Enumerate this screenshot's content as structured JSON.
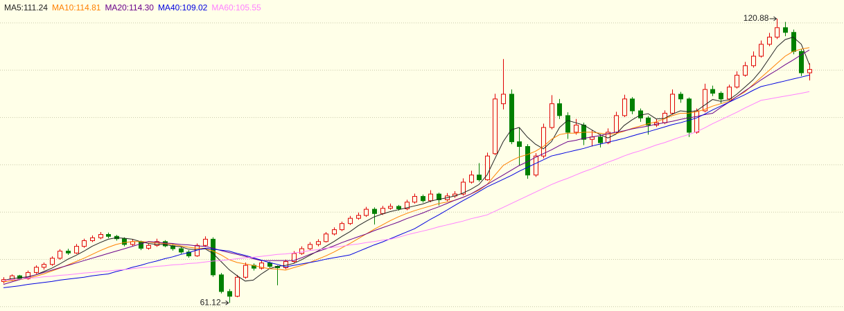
{
  "chart_data": {
    "type": "candlestick",
    "up_color": "#e00000",
    "down_color": "#008000",
    "background": "#ffffe8",
    "grid": true,
    "ylim": [
      59.4,
      121.9
    ],
    "max_label": 120.88,
    "min_label": 61.12,
    "ohlc": [
      [
        65.6,
        66.5,
        65.2,
        66.0
      ],
      [
        66.0,
        67.1,
        65.7,
        66.8
      ],
      [
        66.8,
        67.0,
        65.9,
        66.2
      ],
      [
        66.2,
        67.9,
        66.0,
        67.5
      ],
      [
        67.5,
        69.0,
        67.2,
        68.6
      ],
      [
        68.6,
        69.6,
        68.1,
        69.2
      ],
      [
        69.2,
        70.9,
        68.9,
        70.5
      ],
      [
        70.5,
        72.4,
        70.2,
        72.0
      ],
      [
        72.0,
        72.5,
        71.2,
        71.6
      ],
      [
        71.6,
        73.5,
        71.4,
        73.0
      ],
      [
        73.0,
        74.6,
        72.7,
        74.2
      ],
      [
        74.2,
        75.3,
        73.9,
        74.8
      ],
      [
        74.8,
        76.0,
        74.5,
        75.5
      ],
      [
        75.5,
        75.9,
        74.7,
        75.1
      ],
      [
        75.1,
        75.4,
        74.2,
        74.6
      ],
      [
        74.6,
        74.9,
        73.0,
        73.4
      ],
      [
        73.4,
        74.5,
        73.1,
        74.0
      ],
      [
        74.0,
        74.2,
        72.2,
        72.6
      ],
      [
        72.6,
        73.6,
        72.3,
        73.2
      ],
      [
        73.2,
        74.6,
        72.9,
        74.0
      ],
      [
        74.0,
        74.3,
        72.8,
        73.1
      ],
      [
        73.1,
        73.5,
        72.1,
        72.5
      ],
      [
        72.5,
        72.9,
        71.4,
        71.8
      ],
      [
        71.8,
        72.2,
        70.6,
        71.0
      ],
      [
        71.0,
        73.6,
        70.8,
        73.2
      ],
      [
        73.2,
        75.1,
        72.9,
        74.5
      ],
      [
        74.5,
        74.9,
        66.6,
        67.0
      ],
      [
        67.0,
        67.4,
        63.1,
        63.5
      ],
      [
        63.5,
        64.0,
        61.12,
        62.5
      ],
      [
        62.5,
        67.0,
        62.3,
        66.5
      ],
      [
        66.5,
        69.6,
        66.2,
        69.0
      ],
      [
        69.0,
        69.4,
        67.9,
        68.4
      ],
      [
        68.4,
        70.0,
        68.1,
        69.5
      ],
      [
        69.5,
        69.8,
        68.4,
        68.8
      ],
      [
        68.8,
        69.0,
        64.8,
        68.5
      ],
      [
        68.5,
        70.2,
        68.2,
        69.8
      ],
      [
        69.8,
        72.0,
        69.5,
        71.5
      ],
      [
        71.5,
        73.0,
        71.2,
        72.5
      ],
      [
        72.5,
        73.9,
        72.2,
        73.4
      ],
      [
        73.4,
        74.5,
        73.0,
        74.0
      ],
      [
        74.0,
        76.0,
        73.8,
        75.6
      ],
      [
        75.6,
        77.0,
        75.3,
        76.5
      ],
      [
        76.5,
        78.2,
        76.2,
        77.8
      ],
      [
        77.8,
        79.4,
        77.5,
        78.9
      ],
      [
        78.9,
        80.1,
        78.6,
        79.5
      ],
      [
        79.5,
        81.3,
        79.2,
        80.8
      ],
      [
        80.8,
        81.2,
        77.6,
        79.9
      ],
      [
        79.9,
        81.5,
        79.6,
        81.0
      ],
      [
        81.0,
        82.0,
        80.7,
        81.4
      ],
      [
        81.4,
        81.7,
        80.5,
        80.9
      ],
      [
        80.9,
        82.8,
        80.6,
        82.3
      ],
      [
        82.3,
        84.1,
        82.0,
        83.5
      ],
      [
        83.5,
        83.9,
        82.2,
        82.6
      ],
      [
        82.6,
        84.8,
        82.3,
        84.0
      ],
      [
        84.0,
        84.3,
        81.6,
        82.8
      ],
      [
        82.8,
        84.2,
        82.5,
        83.6
      ],
      [
        83.6,
        84.6,
        83.2,
        84.0
      ],
      [
        84.0,
        87.3,
        83.7,
        86.5
      ],
      [
        86.5,
        88.9,
        86.2,
        88.0
      ],
      [
        88.0,
        90.5,
        86.6,
        87.0
      ],
      [
        87.0,
        92.7,
        86.8,
        92.0
      ],
      [
        92.5,
        105.1,
        92.2,
        104.0
      ],
      [
        103.0,
        112.4,
        101.8,
        105.0
      ],
      [
        105.0,
        106.0,
        94.5,
        95.0
      ],
      [
        95.0,
        98.0,
        90.0,
        94.0
      ],
      [
        94.0,
        94.5,
        87.2,
        88.0
      ],
      [
        88.0,
        92.6,
        87.6,
        92.0
      ],
      [
        92.0,
        98.8,
        91.5,
        98.0
      ],
      [
        98.0,
        104.8,
        97.6,
        103.0
      ],
      [
        103.0,
        104.0,
        99.8,
        100.5
      ],
      [
        100.5,
        101.2,
        95.6,
        97.0
      ],
      [
        97.0,
        99.8,
        96.5,
        98.5
      ],
      [
        98.5,
        99.0,
        94.3,
        95.5
      ],
      [
        95.5,
        97.4,
        94.0,
        96.0
      ],
      [
        96.0,
        96.6,
        93.8,
        94.8
      ],
      [
        94.8,
        97.8,
        94.5,
        97.0
      ],
      [
        97.0,
        101.3,
        96.7,
        100.5
      ],
      [
        100.5,
        104.9,
        100.2,
        104.0
      ],
      [
        104.0,
        104.4,
        100.8,
        101.5
      ],
      [
        101.5,
        102.0,
        99.2,
        100.0
      ],
      [
        100.0,
        100.4,
        96.5,
        98.5
      ],
      [
        98.5,
        99.8,
        98.1,
        99.0
      ],
      [
        99.0,
        101.6,
        98.7,
        101.0
      ],
      [
        101.0,
        106.0,
        100.7,
        105.0
      ],
      [
        105.0,
        105.5,
        103.2,
        104.0
      ],
      [
        104.0,
        104.3,
        96.0,
        97.0
      ],
      [
        97.0,
        102.0,
        96.7,
        101.5
      ],
      [
        101.5,
        107.2,
        101.2,
        106.0
      ],
      [
        106.0,
        106.8,
        104.6,
        105.2
      ],
      [
        105.2,
        105.6,
        103.1,
        104.0
      ],
      [
        104.0,
        107.0,
        103.7,
        106.5
      ],
      [
        106.5,
        109.8,
        106.2,
        109.0
      ],
      [
        109.0,
        111.8,
        108.7,
        111.0
      ],
      [
        111.0,
        114.0,
        110.6,
        113.0
      ],
      [
        113.0,
        116.3,
        112.7,
        115.5
      ],
      [
        115.5,
        117.9,
        115.1,
        117.0
      ],
      [
        117.0,
        120.88,
        116.6,
        119.0
      ],
      [
        119.0,
        120.2,
        117.2,
        118.0
      ],
      [
        118.0,
        118.6,
        113.4,
        114.0
      ],
      [
        114.0,
        114.5,
        108.8,
        109.5
      ],
      [
        109.5,
        111.5,
        107.9,
        110.2
      ]
    ],
    "series": [
      {
        "name": "MA5:111.24",
        "color": "#222222",
        "values": [
          65.8,
          66.2,
          66.4,
          66.6,
          67.0,
          67.7,
          68.4,
          69.3,
          70.3,
          71.1,
          72.0,
          73.0,
          73.8,
          74.5,
          74.8,
          74.7,
          74.5,
          74.0,
          73.6,
          73.4,
          73.4,
          73.1,
          72.9,
          72.4,
          72.3,
          72.5,
          71.5,
          69.8,
          68.1,
          66.8,
          65.7,
          65.9,
          67.2,
          68.3,
          68.8,
          69.0,
          69.4,
          70.2,
          71.1,
          72.0,
          73.0,
          74.0,
          75.1,
          76.1,
          77.3,
          78.3,
          79.2,
          79.8,
          80.3,
          80.7,
          81.1,
          81.5,
          81.9,
          82.5,
          82.9,
          83.2,
          83.6,
          84.2,
          85.0,
          86.0,
          88.0,
          91.5,
          95.0,
          97.5,
          98.0,
          96.0,
          94.5,
          93.5,
          95.0,
          98.0,
          99.5,
          99.0,
          98.5,
          97.5,
          96.5,
          95.8,
          96.6,
          98.4,
          99.6,
          100.6,
          100.9,
          99.8,
          99.9,
          100.8,
          101.5,
          101.3,
          101.5,
          102.7,
          103.9,
          103.5,
          103.8,
          105.0,
          106.5,
          108.0,
          110.0,
          112.5,
          115.0,
          116.5,
          117.0,
          115.5,
          111.24
        ]
      },
      {
        "name": "MA10:114.81",
        "color": "#ff8000",
        "values": [
          65.5,
          65.8,
          66.0,
          66.3,
          66.7,
          67.2,
          67.8,
          68.4,
          69.1,
          69.8,
          70.5,
          71.3,
          72.1,
          72.8,
          73.4,
          73.8,
          74.0,
          74.0,
          73.9,
          73.7,
          73.6,
          73.4,
          73.1,
          72.8,
          72.6,
          72.6,
          72.0,
          71.2,
          70.2,
          69.6,
          69.3,
          69.0,
          68.6,
          68.3,
          68.2,
          68.0,
          68.5,
          69.0,
          69.6,
          70.3,
          71.0,
          71.8,
          72.7,
          73.6,
          74.6,
          75.6,
          76.6,
          77.5,
          78.4,
          79.2,
          79.9,
          80.5,
          81.0,
          81.5,
          82.0,
          82.3,
          82.7,
          83.3,
          84.0,
          84.8,
          86.0,
          88.0,
          90.0,
          91.0,
          91.8,
          92.3,
          93.0,
          94.0,
          95.5,
          96.5,
          96.8,
          96.8,
          97.0,
          97.0,
          96.8,
          96.6,
          96.7,
          97.2,
          97.8,
          98.3,
          98.8,
          99.2,
          99.8,
          100.5,
          101.0,
          101.0,
          101.3,
          101.8,
          102.5,
          103.0,
          103.5,
          104.5,
          105.5,
          107.0,
          108.5,
          110.0,
          111.5,
          113.0,
          114.0,
          114.5,
          114.81
        ]
      },
      {
        "name": "MA20:114.30",
        "color": "#6a008a",
        "values": [
          65.0,
          65.5,
          66.0,
          66.5,
          67.0,
          67.5,
          68.0,
          68.5,
          69.0,
          69.5,
          70.0,
          70.5,
          71.0,
          71.5,
          72.0,
          72.5,
          73.0,
          73.5,
          74.0,
          73.9,
          73.7,
          73.6,
          73.4,
          73.3,
          73.1,
          73.0,
          72.6,
          72.1,
          71.7,
          71.3,
          70.9,
          70.4,
          70.0,
          70.0,
          70.0,
          70.0,
          70.0,
          70.6,
          71.3,
          71.9,
          72.5,
          73.1,
          73.8,
          74.4,
          75.0,
          75.6,
          76.3,
          76.9,
          77.5,
          78.1,
          78.8,
          79.4,
          80.0,
          80.7,
          81.3,
          82.0,
          82.7,
          83.3,
          84.0,
          85,
          86,
          87,
          88,
          89,
          90,
          90.8,
          91.7,
          92.5,
          93.3,
          94.2,
          95.0,
          95.3,
          95.7,
          96.0,
          96.3,
          96.7,
          97.0,
          97.3,
          97.7,
          98.0,
          98.3,
          98.7,
          99.0,
          99.3,
          99.7,
          100.0,
          100.3,
          100.7,
          101.0,
          102.2,
          103.3,
          104.5,
          105.7,
          106.8,
          108.0,
          109.1,
          110.1,
          111.2,
          112.2,
          113.3,
          114.3
        ]
      },
      {
        "name": "MA40:109.02",
        "color": "#0000e0",
        "values": [
          64.3,
          64.5,
          64.7,
          65.0,
          65.2,
          65.4,
          65.6,
          65.9,
          66.1,
          66.3,
          66.5,
          66.8,
          67.0,
          67.2,
          67.7,
          68.1,
          68.6,
          69.0,
          69.5,
          69.9,
          70.4,
          70.8,
          71.3,
          71.7,
          72.2,
          72.6,
          72.4,
          72.2,
          72.0,
          71.5,
          71.1,
          70.6,
          70.1,
          69.6,
          69.2,
          68.7,
          69.0,
          69.3,
          69.6,
          69.9,
          70.3,
          70.6,
          70.9,
          71.2,
          71.9,
          72.6,
          73.3,
          73.9,
          74.6,
          75.3,
          76.0,
          76.7,
          77.7,
          78.7,
          79.6,
          80.6,
          81.6,
          82.6,
          83.5,
          84.5,
          85.5,
          86.3,
          87.1,
          87.9,
          88.8,
          89.6,
          90.4,
          91.2,
          92.0,
          92.4,
          92.8,
          93.2,
          93.6,
          94.1,
          94.5,
          94.9,
          95.3,
          95.7,
          96.2,
          96.7,
          97.1,
          97.6,
          98.1,
          98.6,
          99.0,
          99.5,
          100.0,
          100.8,
          101.7,
          102.5,
          103.3,
          104.1,
          104.9,
          105.8,
          106.6,
          107.0,
          107.4,
          107.8,
          108.2,
          108.6,
          109.02
        ]
      },
      {
        "name": "MA60:105.55",
        "color": "#ff80ff",
        "values": [
          65.8,
          66.0,
          66.1,
          66.3,
          66.4,
          66.6,
          66.7,
          66.9,
          67.0,
          67.2,
          67.4,
          67.5,
          67.7,
          67.8,
          68.0,
          68.1,
          68.3,
          68.5,
          68.6,
          68.8,
          68.9,
          69.1,
          69.2,
          69.4,
          69.5,
          69.7,
          69.9,
          70.0,
          70.2,
          70.4,
          70.6,
          70.7,
          70.9,
          71.1,
          71.3,
          71.4,
          71.6,
          71.8,
          72.1,
          72.3,
          72.6,
          72.8,
          73.0,
          73.3,
          73.5,
          73.8,
          74.0,
          74.3,
          74.5,
          74.9,
          75.4,
          75.8,
          76.2,
          76.6,
          77.1,
          77.5,
          77.9,
          78.3,
          78.8,
          79.2,
          79.6,
          80.4,
          81.2,
          82.0,
          82.8,
          83.6,
          84.4,
          85.2,
          86.0,
          86.7,
          87.3,
          88.0,
          88.7,
          89.3,
          90.0,
          90.7,
          91.3,
          92.0,
          92.6,
          93.1,
          93.7,
          94.3,
          94.8,
          95.4,
          96.0,
          96.5,
          97.1,
          97.9,
          98.8,
          99.6,
          100.4,
          101.2,
          102.1,
          102.9,
          103.7,
          104.0,
          104.3,
          104.6,
          104.9,
          105.2,
          105.55
        ]
      }
    ]
  }
}
